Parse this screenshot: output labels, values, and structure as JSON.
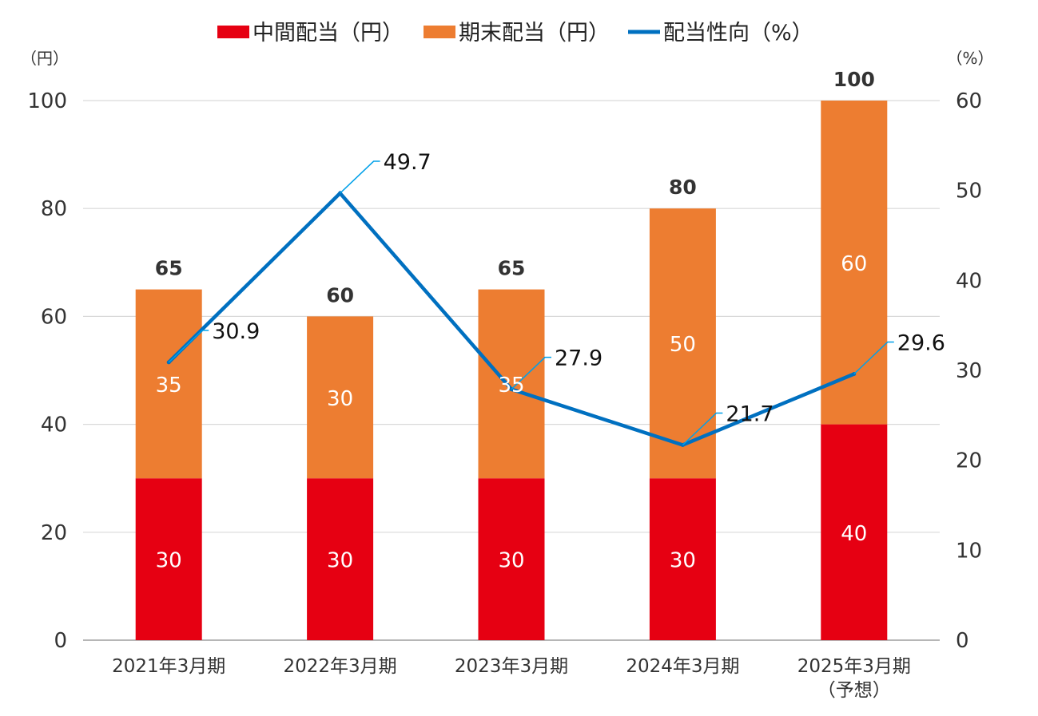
{
  "chart_data": {
    "type": "bar",
    "categories": [
      "2021年3月期",
      "2022年3月期",
      "2023年3月期",
      "2024年3月期",
      "2025年3月期"
    ],
    "category_sublabels": [
      "",
      "",
      "",
      "",
      "（予想）"
    ],
    "stacked": true,
    "series": [
      {
        "name": "中間配当（円）",
        "type": "bar",
        "axis": "left",
        "color": "#e60012",
        "values": [
          30,
          30,
          30,
          30,
          40
        ]
      },
      {
        "name": "期末配当（円）",
        "type": "bar",
        "axis": "left",
        "color": "#ed7d31",
        "values": [
          35,
          30,
          35,
          50,
          60
        ]
      },
      {
        "name": "配当性向（%）",
        "type": "line",
        "axis": "right",
        "color": "#0070c0",
        "values": [
          30.9,
          49.7,
          27.9,
          21.7,
          29.6
        ]
      }
    ],
    "totals": [
      65,
      60,
      65,
      80,
      100
    ],
    "total_labels": [
      "65",
      "60",
      "65",
      "80",
      "100"
    ],
    "segment_labels": [
      [
        "30",
        "35"
      ],
      [
        "30",
        "30"
      ],
      [
        "30",
        "35"
      ],
      [
        "30",
        "50"
      ],
      [
        "40",
        "60"
      ]
    ],
    "line_labels": [
      "30.9",
      "49.7",
      "27.9",
      "21.7",
      "29.6"
    ],
    "y_left": {
      "unit": "（円）",
      "ylim": [
        0,
        100
      ],
      "ticks": [
        "0",
        "20",
        "40",
        "60",
        "80",
        "100"
      ]
    },
    "y_right": {
      "unit": "（%）",
      "ylim": [
        0,
        60
      ],
      "ticks": [
        "0",
        "10",
        "20",
        "30",
        "40",
        "50",
        "60"
      ]
    },
    "grid": true,
    "legend_position": "top"
  }
}
